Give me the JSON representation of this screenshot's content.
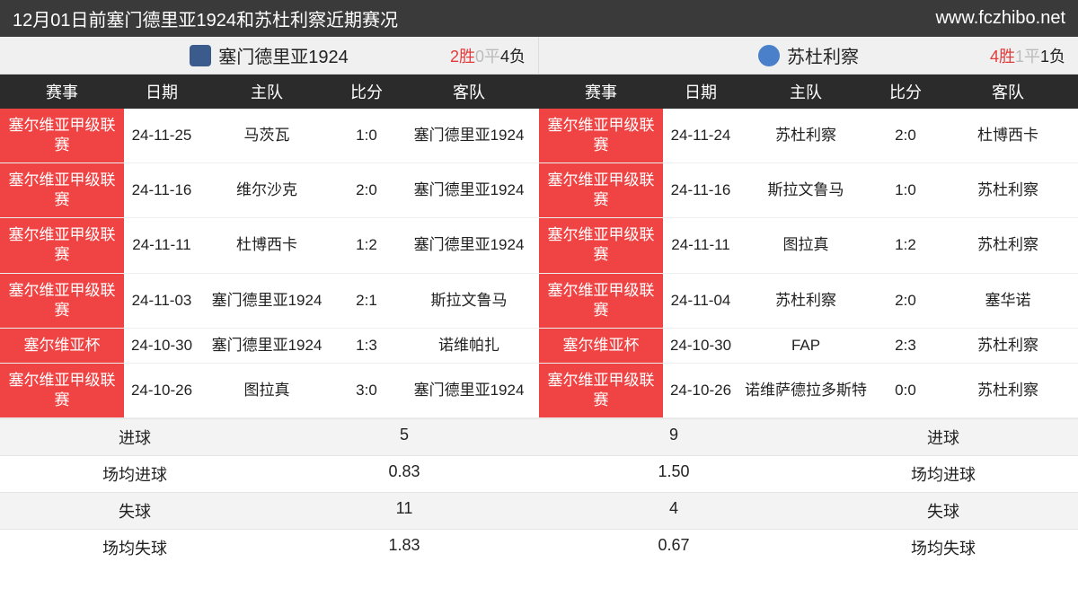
{
  "header": {
    "title": "12月01日前塞门德里亚1924和苏杜利察近期赛况",
    "site": "www.fczhibo.net"
  },
  "columns": {
    "comp": "赛事",
    "date": "日期",
    "home": "主队",
    "score": "比分",
    "away": "客队"
  },
  "teamA": {
    "name": "塞门德里亚1924",
    "record": {
      "wins": "2胜",
      "draws": "0平",
      "losses": "4负"
    },
    "rows": [
      {
        "comp": "塞尔维亚甲级联赛",
        "date": "24-11-25",
        "home": "马茨瓦",
        "score": "1:0",
        "away": "塞门德里亚1924"
      },
      {
        "comp": "塞尔维亚甲级联赛",
        "date": "24-11-16",
        "home": "维尔沙克",
        "score": "2:0",
        "away": "塞门德里亚1924"
      },
      {
        "comp": "塞尔维亚甲级联赛",
        "date": "24-11-11",
        "home": "杜博西卡",
        "score": "1:2",
        "away": "塞门德里亚1924"
      },
      {
        "comp": "塞尔维亚甲级联赛",
        "date": "24-11-03",
        "home": "塞门德里亚1924",
        "score": "2:1",
        "away": "斯拉文鲁马"
      },
      {
        "comp": "塞尔维亚杯",
        "date": "24-10-30",
        "home": "塞门德里亚1924",
        "score": "1:3",
        "away": "诺维帕扎"
      },
      {
        "comp": "塞尔维亚甲级联赛",
        "date": "24-10-26",
        "home": "图拉真",
        "score": "3:0",
        "away": "塞门德里亚1924"
      }
    ],
    "summary": {
      "goals_label": "进球",
      "goals": "5",
      "avg_goals_label": "场均进球",
      "avg_goals": "0.83",
      "conceded_label": "失球",
      "conceded": "11",
      "avg_conceded_label": "场均失球",
      "avg_conceded": "1.83"
    }
  },
  "teamB": {
    "name": "苏杜利察",
    "record": {
      "wins": "4胜",
      "draws": "1平",
      "losses": "1负"
    },
    "rows": [
      {
        "comp": "塞尔维亚甲级联赛",
        "date": "24-11-24",
        "home": "苏杜利察",
        "score": "2:0",
        "away": "杜博西卡"
      },
      {
        "comp": "塞尔维亚甲级联赛",
        "date": "24-11-16",
        "home": "斯拉文鲁马",
        "score": "1:0",
        "away": "苏杜利察"
      },
      {
        "comp": "塞尔维亚甲级联赛",
        "date": "24-11-11",
        "home": "图拉真",
        "score": "1:2",
        "away": "苏杜利察"
      },
      {
        "comp": "塞尔维亚甲级联赛",
        "date": "24-11-04",
        "home": "苏杜利察",
        "score": "2:0",
        "away": "塞华诺"
      },
      {
        "comp": "塞尔维亚杯",
        "date": "24-10-30",
        "home": "FAP",
        "score": "2:3",
        "away": "苏杜利察"
      },
      {
        "comp": "塞尔维亚甲级联赛",
        "date": "24-10-26",
        "home": "诺维萨德拉多斯特",
        "score": "0:0",
        "away": "苏杜利察"
      }
    ],
    "summary": {
      "goals_label": "进球",
      "goals": "9",
      "avg_goals_label": "场均进球",
      "avg_goals": "1.50",
      "conceded_label": "失球",
      "conceded": "4",
      "avg_conceded_label": "场均失球",
      "avg_conceded": "0.67"
    }
  }
}
